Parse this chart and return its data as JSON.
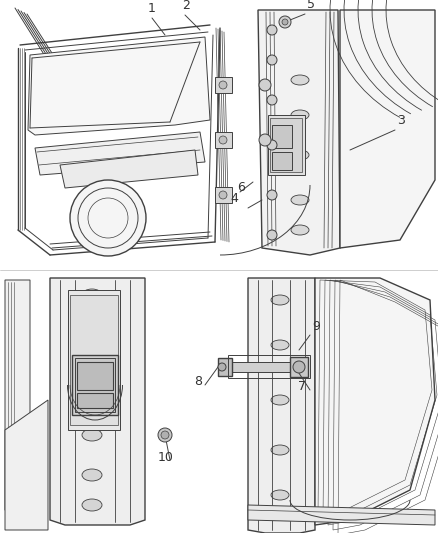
{
  "background_color": "#ffffff",
  "fig_width": 4.38,
  "fig_height": 5.33,
  "dpi": 100,
  "line_color": "#404040",
  "label_color": "#333333",
  "label_fontsize": 8.5,
  "top_section": {
    "y_min": 0.495,
    "y_max": 1.0
  },
  "bottom_section": {
    "y_min": 0.0,
    "y_max": 0.495
  }
}
